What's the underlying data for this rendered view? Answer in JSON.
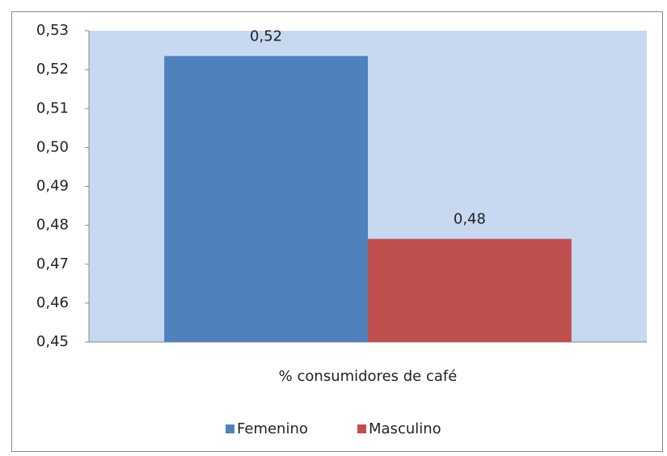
{
  "chart_data": {
    "type": "bar",
    "categories": [
      "% consumidores de café"
    ],
    "series": [
      {
        "name": "Femenino",
        "color": "#4f81bd",
        "values": [
          0.5235
        ],
        "value_labels": [
          "0,52"
        ]
      },
      {
        "name": "Masculino",
        "color": "#c0504d",
        "values": [
          0.4765
        ],
        "value_labels": [
          "0,48"
        ]
      }
    ],
    "ylim": [
      0.45,
      0.53
    ],
    "yticks": [
      {
        "value": 0.45,
        "label": "0,45"
      },
      {
        "value": 0.46,
        "label": "0,46"
      },
      {
        "value": 0.47,
        "label": "0,47"
      },
      {
        "value": 0.48,
        "label": "0,48"
      },
      {
        "value": 0.49,
        "label": "0,49"
      },
      {
        "value": 0.5,
        "label": "0,50"
      },
      {
        "value": 0.51,
        "label": "0,51"
      },
      {
        "value": 0.52,
        "label": "0,52"
      },
      {
        "value": 0.53,
        "label": "0,53"
      }
    ],
    "plot_background": "#c6d9f1",
    "legend": "bottom"
  }
}
